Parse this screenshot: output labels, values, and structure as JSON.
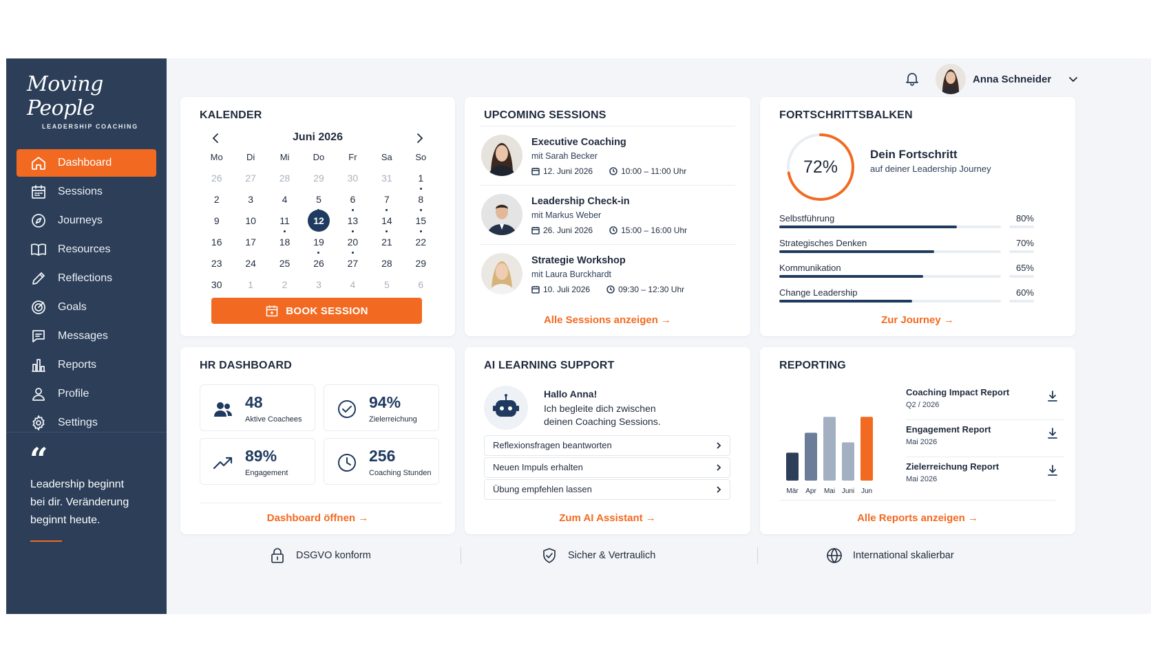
{
  "brand": {
    "name": "Moving People",
    "tagline": "LEADERSHIP COACHING"
  },
  "sidebar": {
    "items": [
      {
        "label": "Dashboard",
        "icon": "home-icon",
        "active": true
      },
      {
        "label": "Sessions",
        "icon": "calendar-icon"
      },
      {
        "label": "Journeys",
        "icon": "compass-icon"
      },
      {
        "label": "Resources",
        "icon": "book-icon"
      },
      {
        "label": "Reflections",
        "icon": "pencil-icon"
      },
      {
        "label": "Goals",
        "icon": "target-icon"
      },
      {
        "label": "Messages",
        "icon": "message-icon"
      },
      {
        "label": "Reports",
        "icon": "bar-chart-icon"
      },
      {
        "label": "Profile",
        "icon": "user-icon"
      },
      {
        "label": "Settings",
        "icon": "gear-icon"
      }
    ],
    "quote_mark": "“",
    "quote": "Leadership beginnt bei dir. Veränderung beginnt heute."
  },
  "header": {
    "user_name": "Anna Schneider"
  },
  "calendar": {
    "title": "KALENDER",
    "month": "Juni 2026",
    "weekdays": [
      "Mo",
      "Di",
      "Mi",
      "Do",
      "Fr",
      "Sa",
      "So"
    ],
    "days": [
      {
        "d": "26",
        "muted": true
      },
      {
        "d": "27",
        "muted": true
      },
      {
        "d": "28",
        "muted": true
      },
      {
        "d": "29",
        "muted": true
      },
      {
        "d": "30",
        "muted": true
      },
      {
        "d": "31",
        "muted": true
      },
      {
        "d": "1",
        "dot": true
      },
      {
        "d": "2"
      },
      {
        "d": "3"
      },
      {
        "d": "4"
      },
      {
        "d": "5",
        "dot": true
      },
      {
        "d": "6",
        "dot": true
      },
      {
        "d": "7",
        "dot": true
      },
      {
        "d": "8",
        "dot": true
      },
      {
        "d": "9"
      },
      {
        "d": "10"
      },
      {
        "d": "11",
        "dot": true
      },
      {
        "d": "12",
        "today": true
      },
      {
        "d": "13",
        "dot": true
      },
      {
        "d": "14",
        "dot": true
      },
      {
        "d": "15",
        "dot": true
      },
      {
        "d": "16"
      },
      {
        "d": "17"
      },
      {
        "d": "18"
      },
      {
        "d": "19",
        "dot": true
      },
      {
        "d": "20",
        "dot": true
      },
      {
        "d": "21"
      },
      {
        "d": "22"
      },
      {
        "d": "23"
      },
      {
        "d": "24"
      },
      {
        "d": "25"
      },
      {
        "d": "26"
      },
      {
        "d": "27"
      },
      {
        "d": "28"
      },
      {
        "d": "29"
      },
      {
        "d": "30"
      },
      {
        "d": "1",
        "muted": true
      },
      {
        "d": "2",
        "muted": true
      },
      {
        "d": "3",
        "muted": true
      },
      {
        "d": "4",
        "muted": true
      },
      {
        "d": "5",
        "muted": true
      },
      {
        "d": "6",
        "muted": true
      }
    ],
    "book_label": "BOOK SESSION"
  },
  "sessions": {
    "title": "UPCOMING SESSIONS",
    "items": [
      {
        "title": "Executive Coaching",
        "coach": "mit Sarah Becker",
        "date": "12. Juni 2026",
        "time": "10:00 – 11:00 Uhr"
      },
      {
        "title": "Leadership Check-in",
        "coach": "mit Markus Weber",
        "date": "26. Juni 2026",
        "time": "15:00 – 16:00 Uhr"
      },
      {
        "title": "Strategie Workshop",
        "coach": "mit Laura Burckhardt",
        "date": "10. Juli 2026",
        "time": "09:30 – 12:30 Uhr"
      }
    ],
    "link": "Alle Sessions anzeigen →"
  },
  "progress": {
    "title": "FORTSCHRITTSBALKEN",
    "overall": 72,
    "overall_label": "72%",
    "heading": "Dein Fortschritt",
    "subheading": "auf deiner Leadership Journey",
    "bars": [
      {
        "label": "Selbstführung",
        "value": 80,
        "pct": "80%"
      },
      {
        "label": "Strategisches Denken",
        "value": 70,
        "pct": "70%"
      },
      {
        "label": "Kommunikation",
        "value": 65,
        "pct": "65%"
      },
      {
        "label": "Change Leadership",
        "value": 60,
        "pct": "60%"
      }
    ],
    "link": "Zur Journey →"
  },
  "hr": {
    "title": "HR DASHBOARD",
    "kpis": [
      {
        "value": "48",
        "label": "Aktive Coachees",
        "icon": "users-icon"
      },
      {
        "value": "94%",
        "label": "Zielerreichung",
        "icon": "check-circle-icon"
      },
      {
        "value": "89%",
        "label": "Engagement",
        "icon": "trend-up-icon"
      },
      {
        "value": "256",
        "label": "Coaching Stunden",
        "icon": "clock-icon"
      }
    ],
    "link": "Dashboard öffnen →"
  },
  "ai": {
    "title": "AI LEARNING SUPPORT",
    "hello": "Hallo Anna!",
    "text": "Ich begleite dich zwischen deinen Coaching Sessions.",
    "options": [
      "Reflexionsfragen beantworten",
      "Neuen Impuls erhalten",
      "Übung empfehlen lassen"
    ],
    "link": "Zum AI Assistant →"
  },
  "reporting": {
    "title": "REPORTING",
    "reports": [
      {
        "title": "Coaching Impact Report",
        "sub": "Q2 / 2026"
      },
      {
        "title": "Engagement Report",
        "sub": "Mai 2026"
      },
      {
        "title": "Zielerreichung Report",
        "sub": "Mai 2026"
      }
    ],
    "link": "Alle Reports anzeigen →"
  },
  "chart_data": {
    "type": "bar",
    "categories": [
      "Mär",
      "Apr",
      "Mai",
      "Juni",
      "Jun"
    ],
    "values": [
      35,
      60,
      80,
      48,
      80
    ],
    "colors": [
      "#2c3e58",
      "#6b7d98",
      "#a3b0c2",
      "#a3b0c2",
      "#f26a21"
    ],
    "ylim": [
      0,
      100
    ]
  },
  "footer": [
    {
      "label": "DSGVO konform",
      "icon": "lock-icon"
    },
    {
      "label": "Sicher & Vertraulich",
      "icon": "shield-icon"
    },
    {
      "label": "International skalierbar",
      "icon": "globe-icon"
    }
  ],
  "colors": {
    "accent": "#f26a21",
    "navy": "#2c3e58",
    "dark_blue": "#1f3a5f"
  }
}
